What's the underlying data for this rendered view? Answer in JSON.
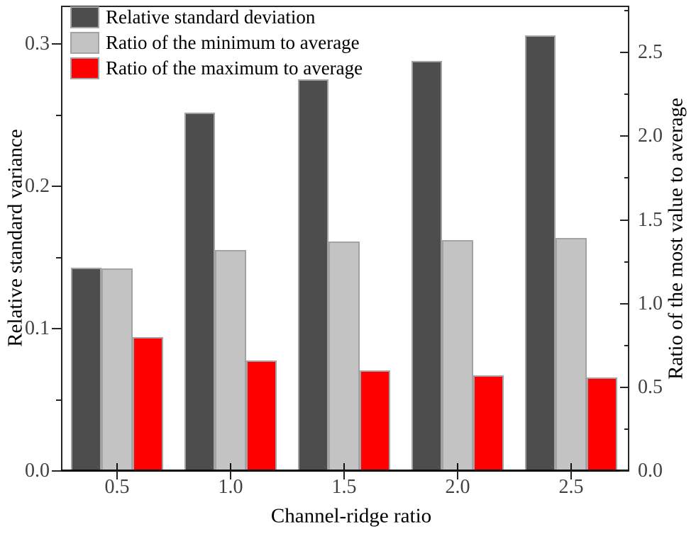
{
  "chart_data": {
    "type": "bar",
    "title": "",
    "categories": [
      "0.5",
      "1.0",
      "1.5",
      "2.0",
      "2.5"
    ],
    "series": [
      {
        "name": "Relative standard deviation",
        "axis": "left",
        "color": "#4d4d4d",
        "values": [
          0.143,
          0.252,
          0.275,
          0.288,
          0.306
        ]
      },
      {
        "name": "Ratio of the minimum to average",
        "axis": "right",
        "color": "#c3c3c3",
        "values": [
          1.21,
          1.32,
          1.37,
          1.38,
          1.39
        ]
      },
      {
        "name": "Ratio of the maximum to average",
        "axis": "right",
        "color": "#ff0000",
        "values": [
          0.8,
          0.66,
          0.6,
          0.57,
          0.56
        ]
      }
    ],
    "xlabel": "Channel-ridge ratio",
    "x_tick_labels": [
      "0.5",
      "1.0",
      "1.5",
      "2.0",
      "2.5"
    ],
    "left_axis": {
      "label": "Relative standard variance",
      "min": 0,
      "max": 0.327,
      "major_ticks": [
        0,
        0.1,
        0.2,
        0.3
      ],
      "tick_labels": [
        "0.0",
        "0.1",
        "0.2",
        "0.3"
      ],
      "minor_ticks": [
        0.05,
        0.15,
        0.25
      ]
    },
    "right_axis": {
      "label": "Ratio of the most value to average",
      "min": 0,
      "max": 2.78,
      "major_ticks": [
        0,
        0.5,
        1.0,
        1.5,
        2.0,
        2.5
      ],
      "tick_labels": [
        "0.0",
        "0.5",
        "1.0",
        "1.5",
        "2.0",
        "2.5"
      ],
      "minor_ticks": [
        0.25,
        0.75,
        1.25,
        1.75,
        2.25,
        2.75
      ]
    },
    "legend_position": "top-left",
    "grid": false,
    "bar_edge_color": "#a3a3a3",
    "frame_color": "#262626"
  }
}
